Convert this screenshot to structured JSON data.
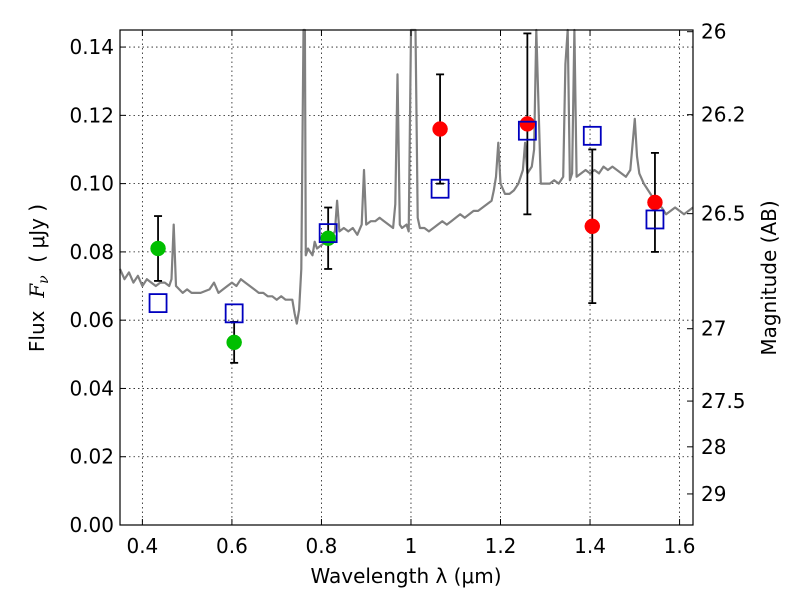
{
  "chart_data": {
    "type": "scatter",
    "xlabel": "Wavelength  λ (μm)",
    "ylabel_left_parts": [
      "Flux  ",
      "F",
      "ν",
      "  ( μJy )"
    ],
    "ylabel_right": "Magnitude (AB)",
    "xlim": [
      0.35,
      1.63
    ],
    "ylim": [
      0.0,
      0.145
    ],
    "grid": true,
    "x_ticks": [
      0.4,
      0.6,
      0.8,
      1.0,
      1.2,
      1.4,
      1.6
    ],
    "x_tick_labels": [
      "0.4",
      "0.6",
      "0.8",
      "1",
      "1.2",
      "1.4",
      "1.6"
    ],
    "y_ticks": [
      0.0,
      0.02,
      0.04,
      0.06,
      0.08,
      0.1,
      0.12,
      0.14
    ],
    "y_tick_labels": [
      "0.00",
      "0.02",
      "0.04",
      "0.06",
      "0.08",
      "0.10",
      "0.12",
      "0.14"
    ],
    "mag_ticks": [
      {
        "label": "26",
        "flux": 0.1445
      },
      {
        "label": "26.2",
        "flux": 0.1202
      },
      {
        "label": "26.5",
        "flux": 0.0912
      },
      {
        "label": "27",
        "flux": 0.0575
      },
      {
        "label": "27.5",
        "flux": 0.0363
      },
      {
        "label": "28",
        "flux": 0.0229
      },
      {
        "label": "29",
        "flux": 0.0091
      }
    ],
    "colors": {
      "spectrum": "#808080",
      "green": "#00bf00",
      "red": "#ff0000",
      "model": "#0000bf",
      "errorbar": "#000000"
    },
    "spectrum": [
      [
        0.35,
        0.075
      ],
      [
        0.36,
        0.072
      ],
      [
        0.37,
        0.074
      ],
      [
        0.38,
        0.071
      ],
      [
        0.39,
        0.073
      ],
      [
        0.4,
        0.07
      ],
      [
        0.41,
        0.072
      ],
      [
        0.42,
        0.071
      ],
      [
        0.43,
        0.07
      ],
      [
        0.44,
        0.071
      ],
      [
        0.45,
        0.071
      ],
      [
        0.46,
        0.07
      ],
      [
        0.465,
        0.072
      ],
      [
        0.47,
        0.088
      ],
      [
        0.475,
        0.07
      ],
      [
        0.49,
        0.068
      ],
      [
        0.5,
        0.069
      ],
      [
        0.51,
        0.068
      ],
      [
        0.53,
        0.068
      ],
      [
        0.55,
        0.069
      ],
      [
        0.56,
        0.071
      ],
      [
        0.57,
        0.068
      ],
      [
        0.58,
        0.069
      ],
      [
        0.59,
        0.07
      ],
      [
        0.6,
        0.071
      ],
      [
        0.61,
        0.07
      ],
      [
        0.62,
        0.072
      ],
      [
        0.63,
        0.071
      ],
      [
        0.64,
        0.07
      ],
      [
        0.65,
        0.069
      ],
      [
        0.66,
        0.068
      ],
      [
        0.67,
        0.068
      ],
      [
        0.68,
        0.067
      ],
      [
        0.69,
        0.067
      ],
      [
        0.7,
        0.066
      ],
      [
        0.71,
        0.067
      ],
      [
        0.72,
        0.066
      ],
      [
        0.73,
        0.066
      ],
      [
        0.735,
        0.066
      ],
      [
        0.74,
        0.062
      ],
      [
        0.745,
        0.059
      ],
      [
        0.75,
        0.063
      ],
      [
        0.755,
        0.075
      ],
      [
        0.76,
        0.145
      ],
      [
        0.763,
        0.145
      ],
      [
        0.765,
        0.079
      ],
      [
        0.77,
        0.081
      ],
      [
        0.78,
        0.079
      ],
      [
        0.785,
        0.083
      ],
      [
        0.79,
        0.081
      ],
      [
        0.8,
        0.082
      ],
      [
        0.81,
        0.083
      ],
      [
        0.82,
        0.084
      ],
      [
        0.83,
        0.086
      ],
      [
        0.835,
        0.095
      ],
      [
        0.84,
        0.086
      ],
      [
        0.85,
        0.087
      ],
      [
        0.86,
        0.086
      ],
      [
        0.87,
        0.087
      ],
      [
        0.88,
        0.085
      ],
      [
        0.89,
        0.088
      ],
      [
        0.895,
        0.104
      ],
      [
        0.9,
        0.088
      ],
      [
        0.91,
        0.089
      ],
      [
        0.92,
        0.089
      ],
      [
        0.93,
        0.09
      ],
      [
        0.94,
        0.089
      ],
      [
        0.95,
        0.088
      ],
      [
        0.96,
        0.087
      ],
      [
        0.965,
        0.094
      ],
      [
        0.97,
        0.132
      ],
      [
        0.975,
        0.088
      ],
      [
        0.98,
        0.087
      ],
      [
        0.99,
        0.088
      ],
      [
        0.995,
        0.086
      ],
      [
        1.0,
        0.145
      ],
      [
        1.005,
        0.145
      ],
      [
        1.01,
        0.145
      ],
      [
        1.015,
        0.09
      ],
      [
        1.02,
        0.087
      ],
      [
        1.03,
        0.087
      ],
      [
        1.04,
        0.086
      ],
      [
        1.05,
        0.087
      ],
      [
        1.06,
        0.088
      ],
      [
        1.07,
        0.089
      ],
      [
        1.08,
        0.088
      ],
      [
        1.09,
        0.089
      ],
      [
        1.1,
        0.09
      ],
      [
        1.11,
        0.091
      ],
      [
        1.12,
        0.09
      ],
      [
        1.13,
        0.091
      ],
      [
        1.14,
        0.092
      ],
      [
        1.15,
        0.092
      ],
      [
        1.16,
        0.093
      ],
      [
        1.17,
        0.094
      ],
      [
        1.18,
        0.095
      ],
      [
        1.185,
        0.098
      ],
      [
        1.19,
        0.102
      ],
      [
        1.195,
        0.112
      ],
      [
        1.2,
        0.1
      ],
      [
        1.21,
        0.097
      ],
      [
        1.22,
        0.097
      ],
      [
        1.23,
        0.098
      ],
      [
        1.24,
        0.1
      ],
      [
        1.25,
        0.104
      ],
      [
        1.255,
        0.112
      ],
      [
        1.26,
        0.103
      ],
      [
        1.27,
        0.105
      ],
      [
        1.275,
        0.11
      ],
      [
        1.28,
        0.145
      ],
      [
        1.285,
        0.122
      ],
      [
        1.29,
        0.1
      ],
      [
        1.3,
        0.1
      ],
      [
        1.31,
        0.1
      ],
      [
        1.32,
        0.101
      ],
      [
        1.33,
        0.1
      ],
      [
        1.34,
        0.102
      ],
      [
        1.345,
        0.135
      ],
      [
        1.35,
        0.145
      ],
      [
        1.355,
        0.101
      ],
      [
        1.36,
        0.103
      ],
      [
        1.365,
        0.145
      ],
      [
        1.37,
        0.102
      ],
      [
        1.38,
        0.103
      ],
      [
        1.39,
        0.104
      ],
      [
        1.4,
        0.103
      ],
      [
        1.41,
        0.104
      ],
      [
        1.42,
        0.103
      ],
      [
        1.43,
        0.105
      ],
      [
        1.44,
        0.104
      ],
      [
        1.45,
        0.105
      ],
      [
        1.46,
        0.104
      ],
      [
        1.47,
        0.103
      ],
      [
        1.48,
        0.102
      ],
      [
        1.49,
        0.104
      ],
      [
        1.5,
        0.119
      ],
      [
        1.505,
        0.108
      ],
      [
        1.51,
        0.103
      ],
      [
        1.52,
        0.1
      ],
      [
        1.53,
        0.098
      ],
      [
        1.54,
        0.096
      ],
      [
        1.55,
        0.094
      ],
      [
        1.56,
        0.093
      ],
      [
        1.57,
        0.091
      ],
      [
        1.58,
        0.092
      ],
      [
        1.59,
        0.093
      ],
      [
        1.6,
        0.092
      ],
      [
        1.61,
        0.091
      ],
      [
        1.62,
        0.092
      ],
      [
        1.63,
        0.093
      ]
    ],
    "series": [
      {
        "color_key": "green",
        "points": [
          {
            "x": 0.435,
            "y": 0.081,
            "lo": 0.0715,
            "hi": 0.0905
          },
          {
            "x": 0.605,
            "y": 0.0535,
            "lo": 0.0475,
            "hi": 0.0595
          },
          {
            "x": 0.815,
            "y": 0.084,
            "lo": 0.075,
            "hi": 0.093
          }
        ]
      },
      {
        "color_key": "red",
        "points": [
          {
            "x": 1.065,
            "y": 0.116,
            "lo": 0.1,
            "hi": 0.132
          },
          {
            "x": 1.26,
            "y": 0.1175,
            "lo": 0.091,
            "hi": 0.144
          },
          {
            "x": 1.405,
            "y": 0.0875,
            "lo": 0.065,
            "hi": 0.11
          },
          {
            "x": 1.545,
            "y": 0.0945,
            "lo": 0.08,
            "hi": 0.109
          }
        ]
      },
      {
        "color_key": "model",
        "points": [
          {
            "x": 0.435,
            "y": 0.065
          },
          {
            "x": 0.605,
            "y": 0.062
          },
          {
            "x": 0.815,
            "y": 0.0855
          },
          {
            "x": 1.065,
            "y": 0.0985
          },
          {
            "x": 1.26,
            "y": 0.1155
          },
          {
            "x": 1.405,
            "y": 0.114
          },
          {
            "x": 1.545,
            "y": 0.0895
          }
        ]
      }
    ]
  }
}
